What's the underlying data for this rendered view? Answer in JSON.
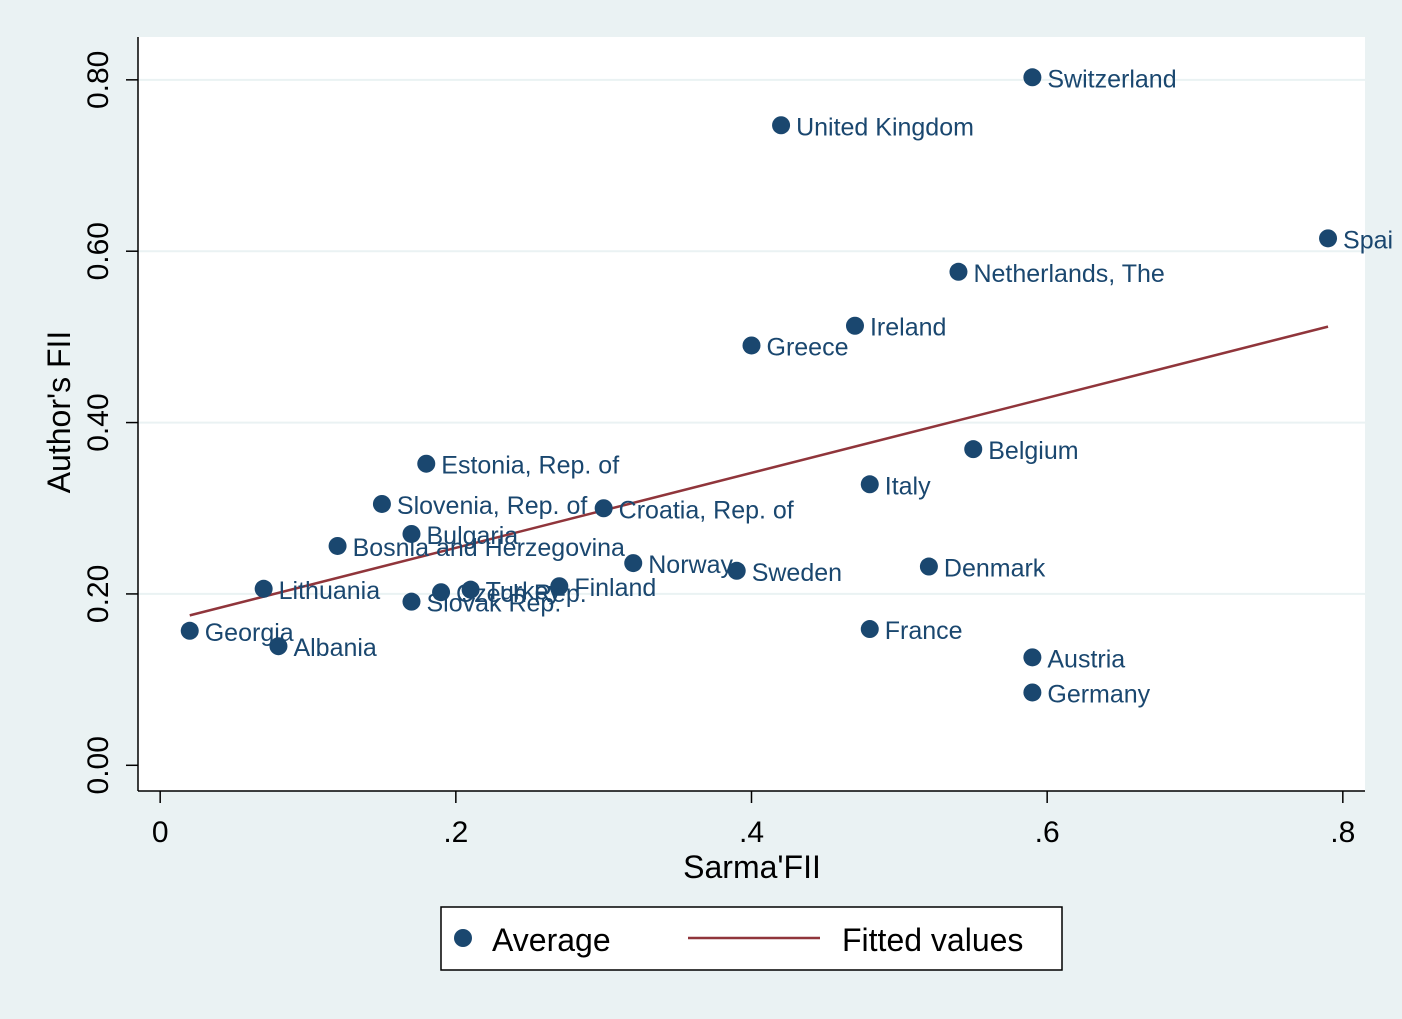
{
  "chart_data": {
    "type": "scatter",
    "xlabel": "Sarma'FII",
    "ylabel": "Author's FII",
    "xlim": [
      -0.015,
      0.815
    ],
    "ylim": [
      -0.03,
      0.85
    ],
    "x_ticks": [
      {
        "value": 0,
        "label": "0"
      },
      {
        "value": 0.2,
        "label": ".2"
      },
      {
        "value": 0.4,
        "label": ".4"
      },
      {
        "value": 0.6,
        "label": ".6"
      },
      {
        "value": 0.8,
        "label": ".8"
      }
    ],
    "y_ticks": [
      {
        "value": 0.0,
        "label": "0.00"
      },
      {
        "value": 0.2,
        "label": "0.20"
      },
      {
        "value": 0.4,
        "label": "0.40"
      },
      {
        "value": 0.6,
        "label": "0.60"
      },
      {
        "value": 0.8,
        "label": "0.80"
      }
    ],
    "grid": true,
    "legend_position": "bottom",
    "series": [
      {
        "name": "Average",
        "kind": "scatter",
        "color": "#1a476f",
        "points": [
          {
            "label": "Switzerland",
            "x": 0.59,
            "y": 0.803
          },
          {
            "label": "United Kingdom",
            "x": 0.42,
            "y": 0.747
          },
          {
            "label": "Spai",
            "x": 0.79,
            "y": 0.615
          },
          {
            "label": "Netherlands, The",
            "x": 0.54,
            "y": 0.576
          },
          {
            "label": "Ireland",
            "x": 0.47,
            "y": 0.513
          },
          {
            "label": "Greece",
            "x": 0.4,
            "y": 0.49
          },
          {
            "label": "Belgium",
            "x": 0.55,
            "y": 0.369
          },
          {
            "label": "Estonia, Rep. of",
            "x": 0.18,
            "y": 0.352
          },
          {
            "label": "Italy",
            "x": 0.48,
            "y": 0.328
          },
          {
            "label": "Slovenia, Rep. of",
            "x": 0.15,
            "y": 0.305
          },
          {
            "label": "Croatia, Rep. of",
            "x": 0.3,
            "y": 0.3
          },
          {
            "label": "Bulgaria",
            "x": 0.17,
            "y": 0.27
          },
          {
            "label": "Bosnia and Herzegovina",
            "x": 0.12,
            "y": 0.256
          },
          {
            "label": "Norway",
            "x": 0.32,
            "y": 0.236
          },
          {
            "label": "Denmark",
            "x": 0.52,
            "y": 0.232
          },
          {
            "label": "Sweden",
            "x": 0.39,
            "y": 0.227
          },
          {
            "label": "Finland",
            "x": 0.27,
            "y": 0.209
          },
          {
            "label": "Turkey",
            "x": 0.21,
            "y": 0.205
          },
          {
            "label": "Lithuania",
            "x": 0.07,
            "y": 0.206
          },
          {
            "label": "Czech Rep.",
            "x": 0.19,
            "y": 0.202
          },
          {
            "label": "Slovak Rep.",
            "x": 0.17,
            "y": 0.191
          },
          {
            "label": "France",
            "x": 0.48,
            "y": 0.159
          },
          {
            "label": "Georgia",
            "x": 0.02,
            "y": 0.157
          },
          {
            "label": "Albania",
            "x": 0.08,
            "y": 0.139
          },
          {
            "label": "Austria",
            "x": 0.59,
            "y": 0.126
          },
          {
            "label": "Germany",
            "x": 0.59,
            "y": 0.085
          }
        ]
      },
      {
        "name": "Fitted values",
        "kind": "line",
        "color": "#90353b",
        "x": [
          0.02,
          0.79
        ],
        "y": [
          0.175,
          0.512
        ]
      }
    ]
  }
}
